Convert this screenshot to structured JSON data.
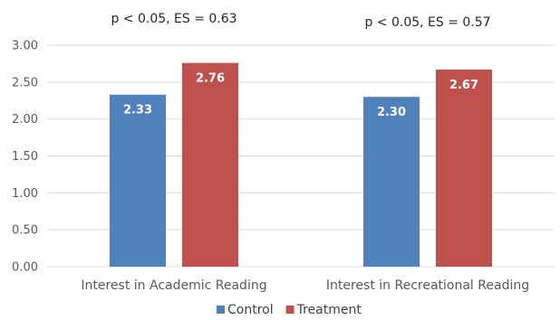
{
  "chart_data": {
    "type": "bar",
    "categories": [
      "Interest in Academic Reading",
      "Interest in Recreational Reading"
    ],
    "series": [
      {
        "name": "Control",
        "values": [
          2.33,
          2.3
        ],
        "labels": [
          "2.33",
          "2.30"
        ],
        "color": "#4F81BD"
      },
      {
        "name": "Treatment",
        "values": [
          2.76,
          2.67
        ],
        "labels": [
          "2.76",
          "2.67"
        ],
        "color": "#C0504D"
      }
    ],
    "annotations": [
      "p < 0.05, ES = 0.63",
      "p < 0.05, ES = 0.57"
    ],
    "yticks": [
      "0.00",
      "0.50",
      "1.00",
      "1.50",
      "2.00",
      "2.50",
      "3.00"
    ],
    "ylim": [
      0,
      3
    ],
    "grid": true,
    "legend_position": "bottom"
  }
}
